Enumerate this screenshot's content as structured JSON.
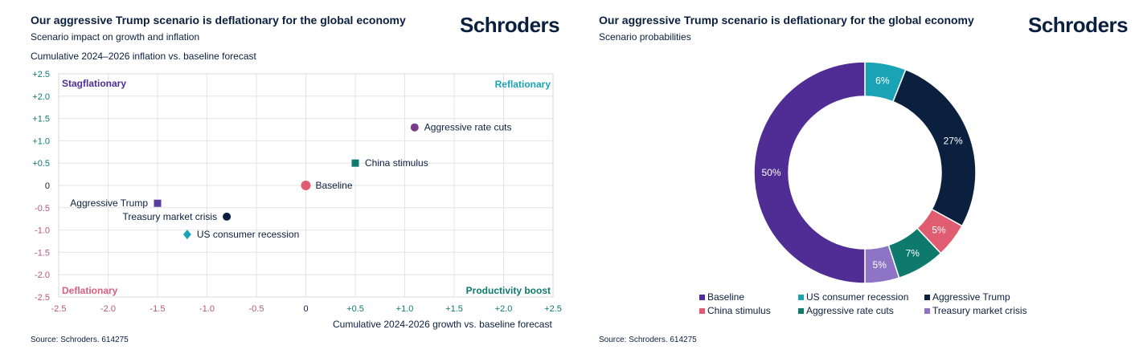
{
  "left": {
    "title": "Our aggressive Trump scenario is deflationary for the global economy",
    "subtitle": "Scenario impact on growth and inflation",
    "logo": "Schroders",
    "source": "Source: Schroders. 614275"
  },
  "right": {
    "title": "Our aggressive Trump scenario is deflationary for the global economy",
    "subtitle": "Scenario probabilities",
    "logo": "Schroders",
    "source": "Source: Schroders. 614275"
  },
  "chart_data": [
    {
      "type": "scatter",
      "ylabel": "Cumulative 2024–2026 inflation vs. baseline forecast",
      "xlabel": "Cumulative 2024-2026 growth vs. baseline forecast",
      "xlim": [
        -2.5,
        2.5
      ],
      "ylim": [
        -2.5,
        2.5
      ],
      "grid": true,
      "xticks": [
        "-2.5",
        "-2.0",
        "-1.5",
        "-1.0",
        "-0.5",
        "0",
        "+0.5",
        "+1.0",
        "+1.5",
        "+2.0",
        "+2.5"
      ],
      "yticks": [
        "+2.5",
        "+2.0",
        "+1.5",
        "+1.0",
        "+0.5",
        "0",
        "-0.5",
        "-1.0",
        "-1.5",
        "-2.0",
        "-2.5"
      ],
      "quadrants": {
        "top_left": "Stagflationary",
        "top_right": "Reflationary",
        "bottom_left": "Deflationary",
        "bottom_right": "Productivity boost"
      },
      "points": [
        {
          "name": "Aggressive rate cuts",
          "x": 1.1,
          "y": 1.3,
          "marker": "circle",
          "color": "#7b3a8c",
          "label_side": "right"
        },
        {
          "name": "China stimulus",
          "x": 0.5,
          "y": 0.5,
          "marker": "square",
          "color": "#0e7a6e",
          "label_side": "right"
        },
        {
          "name": "Baseline",
          "x": 0,
          "y": 0,
          "marker": "circle",
          "color": "#e05c70",
          "label_side": "right"
        },
        {
          "name": "Aggressive Trump",
          "x": -1.5,
          "y": -0.4,
          "marker": "square",
          "color": "#5a3a9e",
          "label_side": "left"
        },
        {
          "name": "Treasury market crisis",
          "x": -0.8,
          "y": -0.7,
          "marker": "circle",
          "color": "#0b1f3f",
          "label_side": "left"
        },
        {
          "name": "US consumer recession",
          "x": -1.2,
          "y": -1.1,
          "marker": "diamond",
          "color": "#1aa3b5",
          "label_side": "right"
        }
      ]
    },
    {
      "type": "pie",
      "donut": true,
      "slices": [
        {
          "name": "US consumer recession",
          "value": 6,
          "label": "6%",
          "color": "#1aa3b5"
        },
        {
          "name": "Aggressive Trump",
          "value": 27,
          "label": "27%",
          "color": "#0b1f3f"
        },
        {
          "name": "China stimulus",
          "value": 5,
          "label": "5%",
          "color": "#e05c70"
        },
        {
          "name": "Aggressive rate cuts",
          "value": 7,
          "label": "7%",
          "color": "#0e7a6e"
        },
        {
          "name": "Treasury market crisis",
          "value": 5,
          "label": "5%",
          "color": "#8d74c4"
        },
        {
          "name": "Baseline",
          "value": 50,
          "label": "50%",
          "color": "#4f2d95"
        }
      ],
      "legend": [
        "Baseline",
        "US consumer recession",
        "Aggressive Trump",
        "China stimulus",
        "Aggressive rate cuts",
        "Treasury market crisis"
      ]
    }
  ]
}
